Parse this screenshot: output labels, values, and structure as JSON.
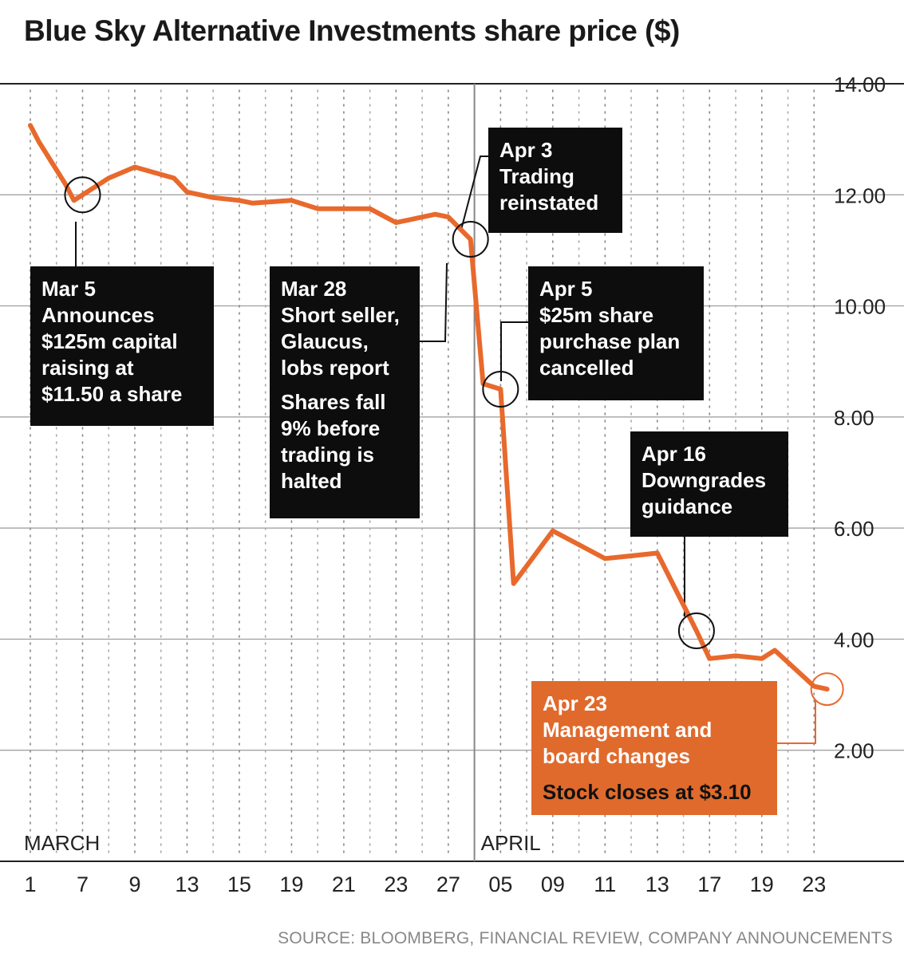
{
  "title": "Blue Sky Alternative Investments share price ($)",
  "source": "SOURCE: BLOOMBERG, FINANCIAL REVIEW, COMPANY ANNOUNCEMENTS",
  "colors": {
    "line": "#e8692c",
    "annotation_box": "#0d0d0d",
    "highlight_box": "#e06a2c",
    "grid": "#999999"
  },
  "chart_data": {
    "type": "line",
    "title": "Blue Sky Alternative Investments share price ($)",
    "ylim": [
      0,
      14
    ],
    "y_ticks": [
      "2.00",
      "4.00",
      "6.00",
      "8.00",
      "10.00",
      "12.00",
      "14.00"
    ],
    "x_ticks": [
      "1",
      "7",
      "9",
      "13",
      "15",
      "19",
      "21",
      "23",
      "27",
      "05",
      "09",
      "11",
      "13",
      "17",
      "19",
      "23"
    ],
    "month_labels": [
      "MARCH",
      "APRIL"
    ],
    "grid": true,
    "y_axis_side": "right",
    "series": [
      {
        "points": [
          [
            "1",
            13.25
          ],
          [
            "2",
            12.95
          ],
          [
            "5",
            12.2
          ],
          [
            "6",
            11.9
          ],
          [
            "7",
            12.0
          ],
          [
            "8",
            12.3
          ],
          [
            "9",
            12.5
          ],
          [
            "12",
            12.3
          ],
          [
            "13",
            12.05
          ],
          [
            "14",
            11.95
          ],
          [
            "15",
            11.9
          ],
          [
            "16",
            11.85
          ],
          [
            "19",
            11.9
          ],
          [
            "20",
            11.75
          ],
          [
            "21",
            11.75
          ],
          [
            "22",
            11.75
          ],
          [
            "23",
            11.5
          ],
          [
            "26",
            11.65
          ],
          [
            "27",
            11.6
          ],
          [
            "28",
            11.2
          ],
          [
            "03",
            8.6
          ],
          [
            "04",
            8.55
          ],
          [
            "05",
            8.5
          ],
          [
            "06",
            5.0
          ],
          [
            "09",
            5.95
          ],
          [
            "10",
            5.7
          ],
          [
            "11",
            5.45
          ],
          [
            "12",
            5.5
          ],
          [
            "13",
            5.55
          ],
          [
            "16",
            4.15
          ],
          [
            "17",
            3.65
          ],
          [
            "18",
            3.7
          ],
          [
            "19",
            3.65
          ],
          [
            "20",
            3.8
          ],
          [
            "23",
            3.15
          ],
          [
            "24",
            3.1
          ]
        ]
      }
    ],
    "annotations": [
      {
        "date": "Mar 5",
        "value": 11.9,
        "lines": [
          "Announces",
          "$125m capital",
          "raising at",
          "$11.50 a share"
        ]
      },
      {
        "date": "Mar 28",
        "value": 11.2,
        "lines": [
          "Short seller,",
          "Glaucus,",
          "lobs report"
        ],
        "note": [
          "Shares fall",
          "9% before",
          "trading is",
          "halted"
        ]
      },
      {
        "date": "Apr 3",
        "value": 11.2,
        "lines": [
          "Trading",
          "reinstated"
        ]
      },
      {
        "date": "Apr 5",
        "value": 8.5,
        "lines": [
          "$25m share",
          "purchase plan",
          "cancelled"
        ]
      },
      {
        "date": "Apr 16",
        "value": 4.15,
        "lines": [
          "Downgrades",
          "guidance"
        ]
      },
      {
        "date": "Apr 23",
        "value": 3.1,
        "lines": [
          "Management and",
          "board changes"
        ],
        "note": [
          "Stock closes at $3.10"
        ]
      }
    ]
  }
}
